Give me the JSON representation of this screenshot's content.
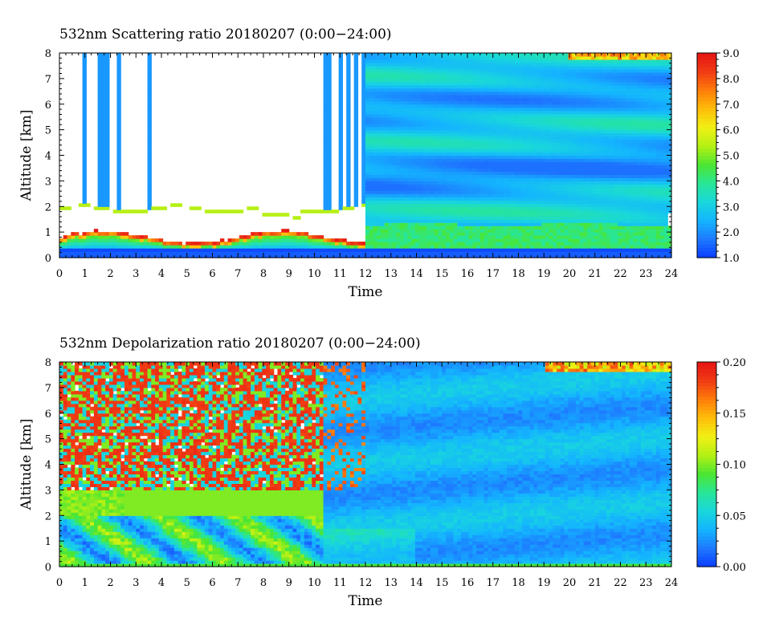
{
  "chart_data": [
    {
      "type": "heatmap",
      "title": "532nm Scattering ratio  20180207 (0:00−24:00)",
      "xlabel": "Time",
      "ylabel": "Altitude [km]",
      "xlim": [
        0,
        24
      ],
      "ylim": [
        0,
        8
      ],
      "x_ticks": [
        "0",
        "1",
        "2",
        "3",
        "4",
        "5",
        "6",
        "7",
        "8",
        "9",
        "10",
        "11",
        "12",
        "13",
        "14",
        "15",
        "16",
        "17",
        "18",
        "19",
        "20",
        "21",
        "22",
        "23",
        "24"
      ],
      "y_ticks": [
        "0",
        "1",
        "2",
        "3",
        "4",
        "5",
        "6",
        "7",
        "8"
      ],
      "colorbar": {
        "range": [
          1.0,
          9.0
        ],
        "ticks": [
          "1.0",
          "2.0",
          "3.0",
          "4.0",
          "5.0",
          "6.0",
          "7.0",
          "8.0",
          "9.0"
        ],
        "colors": [
          "#0a3cff",
          "#1e78ff",
          "#14b4ff",
          "#19d7dc",
          "#28e696",
          "#4be632",
          "#b4f014",
          "#f0f014",
          "#ffbe0a",
          "#ff7d0a",
          "#f03c14",
          "#e61414"
        ]
      },
      "features": {
        "low_cloud_base_km": 1.9,
        "saturated_layer": "white region between ~0.8 and ~1.9 km from 0 to 12 h",
        "high_cloud_top_km": 8,
        "aerosol_layer_km": [
          0.3,
          1.5
        ]
      }
    },
    {
      "type": "heatmap",
      "title": "532nm Depolarization ratio  20180207 (0:00−24:00)",
      "xlabel": "Time",
      "ylabel": "Altitude [km]",
      "xlim": [
        0,
        24
      ],
      "ylim": [
        0,
        8
      ],
      "x_ticks": [
        "0",
        "1",
        "2",
        "3",
        "4",
        "5",
        "6",
        "7",
        "8",
        "9",
        "10",
        "11",
        "12",
        "13",
        "14",
        "15",
        "16",
        "17",
        "18",
        "19",
        "20",
        "21",
        "22",
        "23",
        "24"
      ],
      "y_ticks": [
        "0",
        "1",
        "2",
        "3",
        "4",
        "5",
        "6",
        "7",
        "8"
      ],
      "colorbar": {
        "range": [
          0.0,
          0.2
        ],
        "ticks": [
          "0.00",
          "0.05",
          "0.10",
          "0.15",
          "0.20"
        ],
        "colors": [
          "#0a3cff",
          "#1e78ff",
          "#14b4ff",
          "#19d7dc",
          "#28e696",
          "#4be632",
          "#b4f014",
          "#f0f014",
          "#ffbe0a",
          "#ff7d0a",
          "#f03c14",
          "#e61414"
        ]
      }
    }
  ]
}
